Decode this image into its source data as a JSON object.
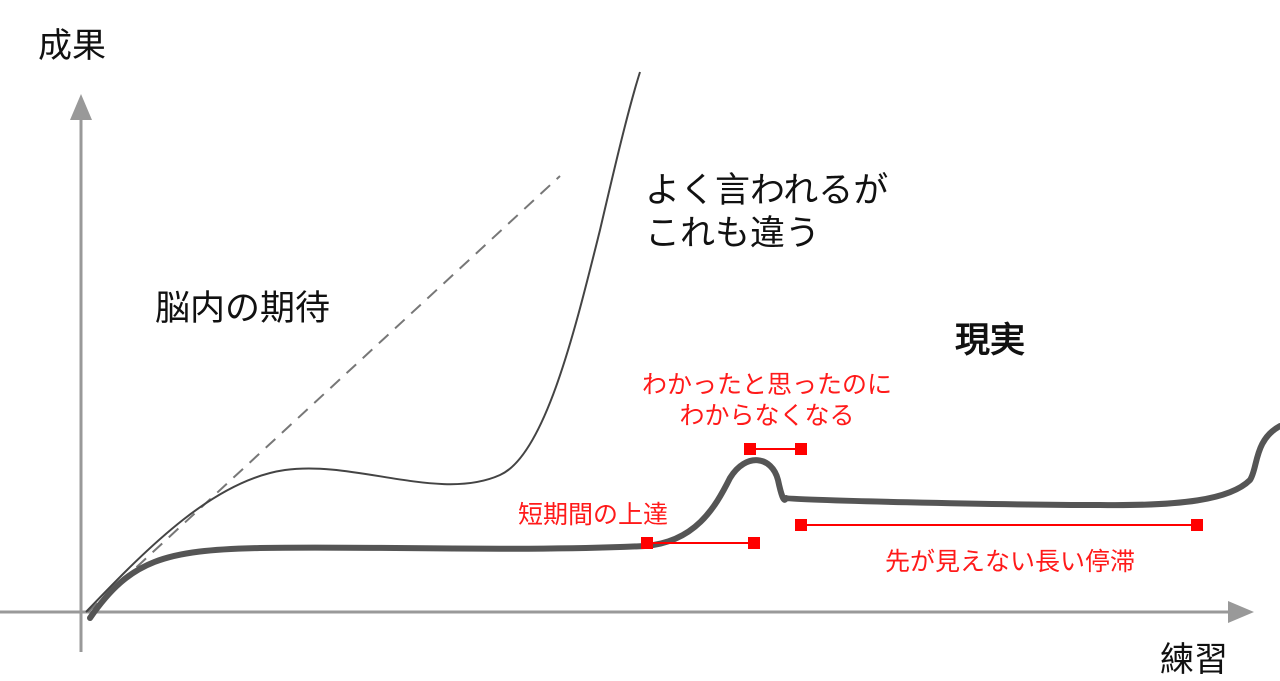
{
  "labels": {
    "y_axis": "成果",
    "x_axis": "練習",
    "brain_expectation": "脳内の期待",
    "often_said": [
      "よく言われるが",
      "これも違う"
    ],
    "reality": "現実",
    "short_progress": "短期間の上達",
    "understood_then_lost": [
      "わかったと思ったのに",
      "わからなくなる"
    ],
    "long_plateau": "先が見えない長い停滞"
  },
  "colors": {
    "axis": "#999999",
    "dashed_line": "#777777",
    "thin_curve": "#444444",
    "reality_curve": "#555555",
    "annotation": "#ff0000",
    "text": "#111111"
  }
}
